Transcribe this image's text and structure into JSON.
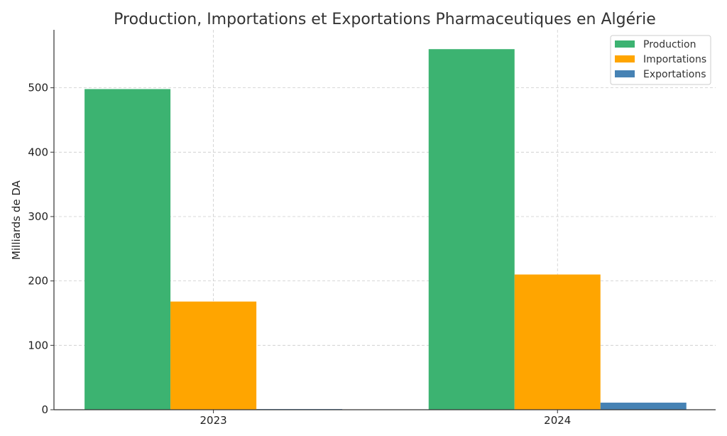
{
  "chart_data": {
    "type": "bar",
    "title": "Production, Importations et Exportations Pharmaceutiques en Algérie",
    "xlabel": "",
    "ylabel": "Milliards de DA",
    "categories": [
      "2023",
      "2024"
    ],
    "series": [
      {
        "name": "Production",
        "values": [
          498,
          560
        ],
        "color": "#3cb371"
      },
      {
        "name": "Importations",
        "values": [
          168,
          210
        ],
        "color": "#ffa500"
      },
      {
        "name": "Exportations",
        "values": [
          1,
          11
        ],
        "color": "#4682b4"
      }
    ],
    "ylim": [
      0,
      590
    ],
    "yticks": [
      0,
      100,
      200,
      300,
      400,
      500
    ],
    "grid": true,
    "legend": "top-right"
  }
}
